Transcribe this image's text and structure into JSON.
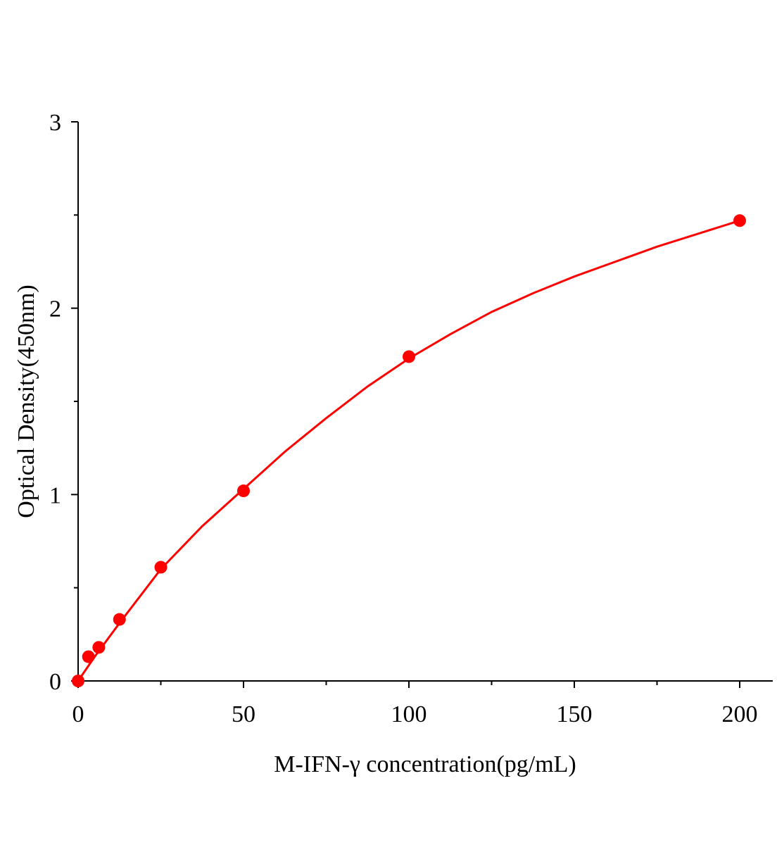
{
  "chart_data": {
    "type": "scatter",
    "xlabel": "M-IFN-γ concentration(pg/mL)",
    "ylabel": "Optical Density(450nm)",
    "x": [
      0,
      3.125,
      6.25,
      12.5,
      25,
      50,
      100,
      200
    ],
    "values": [
      0.0,
      0.13,
      0.18,
      0.33,
      0.61,
      1.02,
      1.74,
      2.47
    ],
    "color": "#ff0000",
    "fit": {
      "x": [
        0,
        5,
        12.5,
        25,
        37.5,
        50,
        62.5,
        75,
        87.5,
        100,
        112.5,
        125,
        137.5,
        150,
        162.5,
        175,
        187.5,
        200
      ],
      "values": [
        0,
        0.13,
        0.31,
        0.6,
        0.83,
        1.03,
        1.23,
        1.41,
        1.58,
        1.73,
        1.86,
        1.98,
        2.08,
        2.17,
        2.25,
        2.33,
        2.4,
        2.47
      ]
    },
    "xlim": [
      0,
      210
    ],
    "ylim": [
      0,
      3
    ],
    "xticks": [
      0,
      50,
      100,
      150,
      200
    ],
    "yticks": [
      0,
      1,
      2,
      3
    ],
    "xminorticks": [
      25,
      75,
      125,
      175
    ],
    "yminorticks": [
      0.5,
      1.5,
      2.5
    ]
  }
}
